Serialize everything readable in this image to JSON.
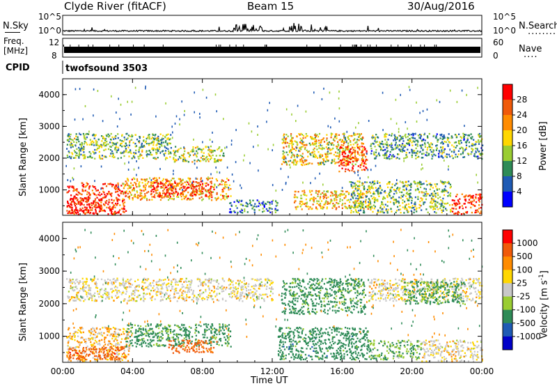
{
  "header": {
    "station": "Clyde River (fitACF)",
    "beam": "Beam 15",
    "date": "30/Aug/2016"
  },
  "noise_panel": {
    "left_label": "N.Sky",
    "left_ticks": [
      "10^5",
      "10^0"
    ],
    "right_ticks": [
      "10^5",
      "10^0"
    ],
    "right_label": "N.Search",
    "right_dots": "........"
  },
  "freq_panel": {
    "left_label_line1": "Freq.",
    "left_label_line2": "[MHz]",
    "left_ticks": [
      "12",
      "8"
    ],
    "right_ticks": [
      "60",
      "0"
    ],
    "right_label": "Nave",
    "right_dots": "...."
  },
  "cpid_panel": {
    "label": "CPID",
    "value": "twofsound 3503"
  },
  "x_axis": {
    "tick_labels": [
      "00:00",
      "04:00",
      "08:00",
      "12:00",
      "16:00",
      "20:00",
      "00:00"
    ],
    "label": "Time UT"
  },
  "colors": {
    "red": "#ff0000",
    "dark_orange": "#f05a0a",
    "orange": "#ff8c00",
    "yellow": "#ffd000",
    "light_green": "#9acd32",
    "green": "#228b22",
    "dark_green": "#1e7a3a",
    "blue": "#1432c8",
    "navy": "#0000c8",
    "grey": "#c8c8c8"
  },
  "chart_data": [
    {
      "type": "heatmap",
      "name": "power",
      "ylabel": "Slant Range [km]",
      "y_tick_labels": [
        "1000",
        "2000",
        "3000",
        "4000"
      ],
      "ylim": [
        200,
        4500
      ],
      "xlim_hours": [
        0,
        24
      ],
      "colorbar": {
        "label": "Power [dB]",
        "tick_labels": [
          "4",
          "8",
          "12",
          "16",
          "20",
          "24",
          "28"
        ],
        "range": [
          0,
          30
        ],
        "colors": [
          "#0000ff",
          "#1e5ab4",
          "#2e8b57",
          "#9acd32",
          "#ffd700",
          "#ff8c00",
          "#f05a0a",
          "#ff0000"
        ]
      },
      "regions": [
        {
          "t0": 0.2,
          "t1": 3.6,
          "r0": 250,
          "r1": 1250,
          "v": 27
        },
        {
          "t0": 0.4,
          "t1": 2.2,
          "r0": 300,
          "r1": 800,
          "v": 30
        },
        {
          "t0": 3.4,
          "t1": 9.6,
          "r0": 700,
          "r1": 1400,
          "v": 20
        },
        {
          "t0": 5.0,
          "t1": 8.5,
          "r0": 800,
          "r1": 1300,
          "v": 26
        },
        {
          "t0": 0.2,
          "t1": 6.2,
          "r0": 2000,
          "r1": 2800,
          "v": 12
        },
        {
          "t0": 6.3,
          "t1": 9.2,
          "r0": 1900,
          "r1": 2400,
          "v": 15
        },
        {
          "t0": 12.5,
          "t1": 17.2,
          "r0": 1800,
          "r1": 2800,
          "v": 17
        },
        {
          "t0": 15.8,
          "t1": 17.4,
          "r0": 1600,
          "r1": 2400,
          "v": 26
        },
        {
          "t0": 13.2,
          "t1": 17.6,
          "r0": 400,
          "r1": 1000,
          "v": 18
        },
        {
          "t0": 16.4,
          "t1": 22.2,
          "r0": 300,
          "r1": 1300,
          "v": 12
        },
        {
          "t0": 17.6,
          "t1": 24.0,
          "r0": 2000,
          "r1": 2800,
          "v": 10
        },
        {
          "t0": 22.2,
          "t1": 24.0,
          "r0": 250,
          "r1": 900,
          "v": 27
        },
        {
          "t0": 9.5,
          "t1": 12.3,
          "r0": 300,
          "r1": 700,
          "v": 8
        }
      ]
    },
    {
      "type": "heatmap",
      "name": "velocity",
      "ylabel": "Slant Range [km]",
      "y_tick_labels": [
        "1000",
        "2000",
        "3000",
        "4000"
      ],
      "ylim": [
        200,
        4500
      ],
      "xlim_hours": [
        0,
        24
      ],
      "colorbar": {
        "label": "Velocity [m s^-1]",
        "tick_labels": [
          "1000",
          "500",
          "100",
          "25",
          "-25",
          "-100",
          "-500",
          "-1000"
        ],
        "colors": [
          "#ff0000",
          "#f05a0a",
          "#ff8c00",
          "#ffd700",
          "#c8c8c8",
          "#9acd32",
          "#2e8b57",
          "#1e5ab4",
          "#0000c8"
        ]
      },
      "regions": [
        {
          "t0": 0.2,
          "t1": 3.8,
          "r0": 250,
          "r1": 1300,
          "v": 25
        },
        {
          "t0": 0.3,
          "t1": 3.5,
          "r0": 300,
          "r1": 700,
          "v": 300
        },
        {
          "t0": 3.6,
          "t1": 9.6,
          "r0": 700,
          "r1": 1400,
          "v": -200
        },
        {
          "t0": 6.0,
          "t1": 8.8,
          "r0": 500,
          "r1": 900,
          "v": 200
        },
        {
          "t0": 0.2,
          "t1": 12.0,
          "r0": 2100,
          "r1": 2800,
          "v": 0
        },
        {
          "t0": 12.5,
          "t1": 17.3,
          "r0": 1700,
          "r1": 2800,
          "v": -200
        },
        {
          "t0": 12.3,
          "t1": 17.5,
          "r0": 300,
          "r1": 1300,
          "v": -300
        },
        {
          "t0": 17.5,
          "t1": 24.0,
          "r0": 2100,
          "r1": 2800,
          "v": 0
        },
        {
          "t0": 19.5,
          "t1": 23.0,
          "r0": 2000,
          "r1": 2700,
          "v": -150
        },
        {
          "t0": 20.5,
          "t1": 24.0,
          "r0": 250,
          "r1": 900,
          "v": 0
        },
        {
          "t0": 17.5,
          "t1": 20.5,
          "r0": 300,
          "r1": 900,
          "v": -100
        }
      ]
    },
    {
      "type": "line",
      "name": "noise",
      "ylim_log": [
        0,
        5
      ],
      "baseline_log": 1.0,
      "bursts": [
        {
          "t0": 9.6,
          "t1": 10.6,
          "v": 3.0
        },
        {
          "t0": 10.8,
          "t1": 11.4,
          "v": 2.6
        },
        {
          "t0": 13.0,
          "t1": 14.5,
          "v": 3.2
        },
        {
          "t0": 14.6,
          "t1": 15.2,
          "v": 2.2
        }
      ]
    }
  ]
}
